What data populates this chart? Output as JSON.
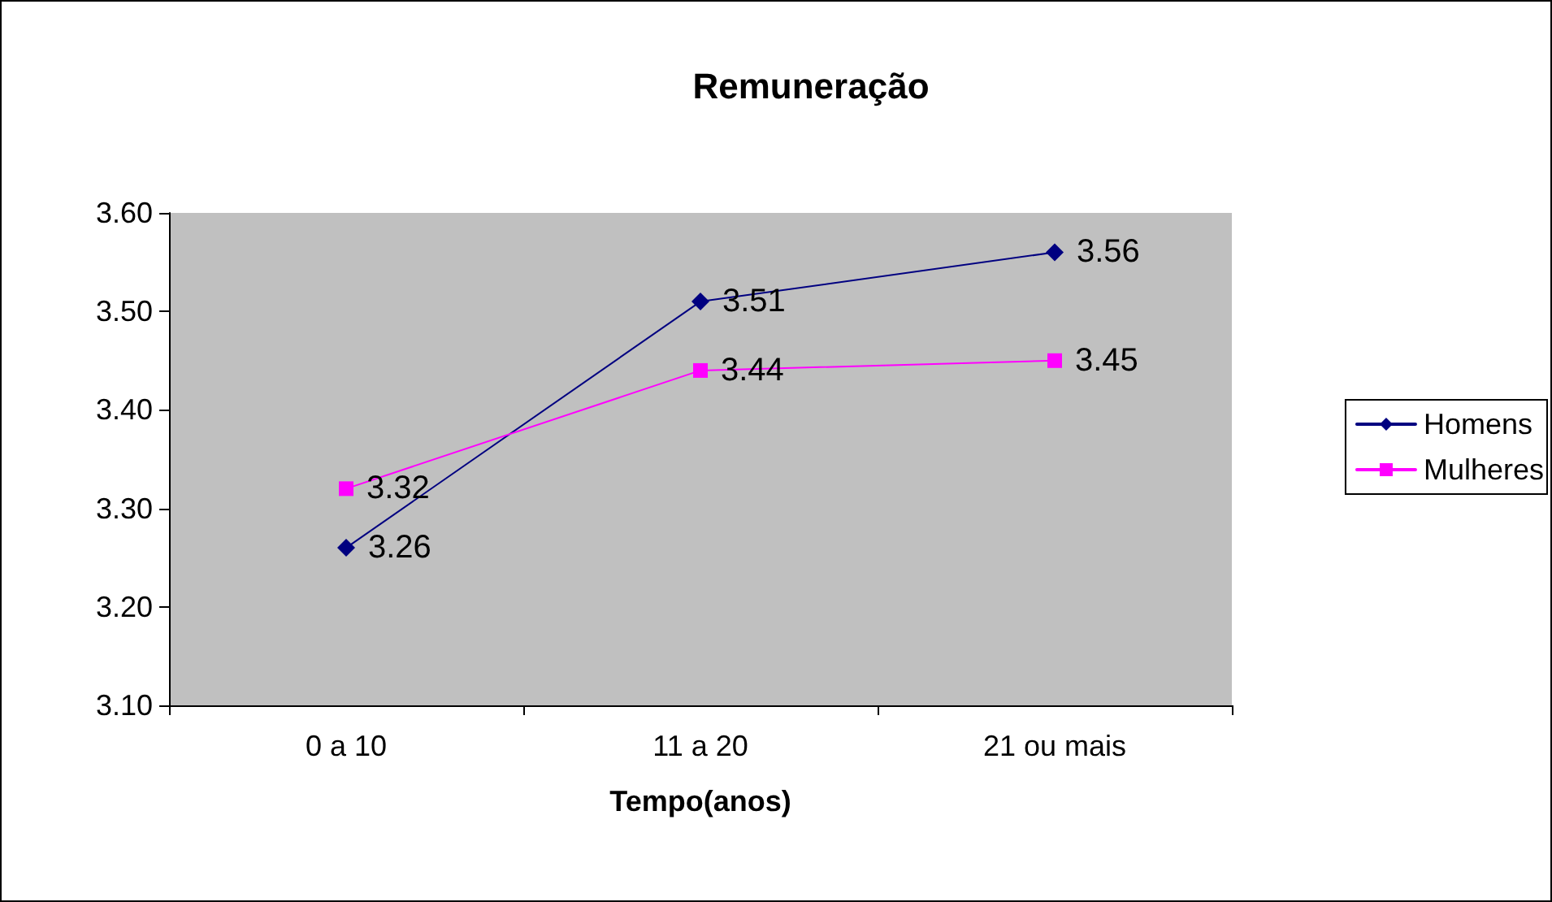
{
  "chart_data": {
    "type": "line",
    "title": "Remuneração",
    "xlabel": "Tempo(anos)",
    "categories": [
      "0 a 10",
      "11 a 20",
      "21 ou mais"
    ],
    "series": [
      {
        "name": "Homens",
        "color": "#000080",
        "values": [
          3.26,
          3.51,
          3.56
        ],
        "marker": "diamond"
      },
      {
        "name": "Mulheres",
        "color": "#ff00ff",
        "values": [
          3.32,
          3.44,
          3.45
        ],
        "marker": "square"
      }
    ],
    "ylim": [
      3.1,
      3.6
    ],
    "yticks": [
      {
        "value": 3.1,
        "label": "3.10"
      },
      {
        "value": 3.2,
        "label": "3.20"
      },
      {
        "value": 3.3,
        "label": "3.30"
      },
      {
        "value": 3.4,
        "label": "3.40"
      },
      {
        "value": 3.5,
        "label": "3.50"
      },
      {
        "value": 3.6,
        "label": "3.60"
      }
    ],
    "grid": false,
    "legend": "right",
    "data_labels": true,
    "line_style": "solid"
  }
}
